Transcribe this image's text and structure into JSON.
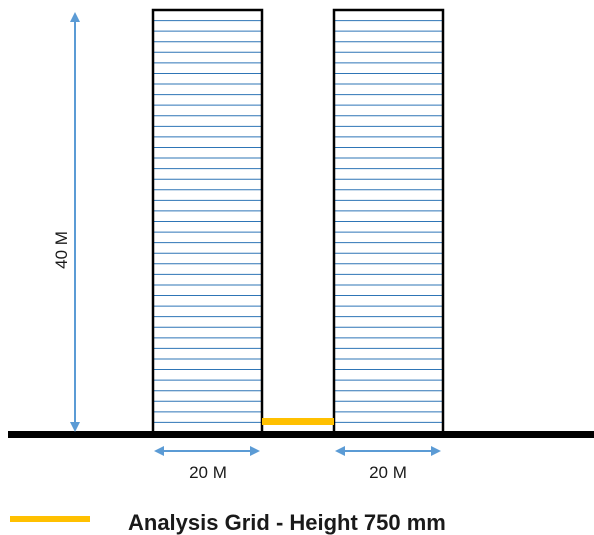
{
  "dimensions": {
    "height_label": "40 M",
    "left_width_label": "20 M",
    "right_width_label": "20 M"
  },
  "legend": {
    "label": "Analysis Grid - Height 750 mm"
  },
  "colors": {
    "building_line": "#2e75b6",
    "arrow": "#5b9bd5",
    "ground": "#000000",
    "analysis_grid": "#ffc000"
  },
  "buildings": [
    {
      "name": "building-left",
      "floors": 40
    },
    {
      "name": "building-right",
      "floors": 40
    }
  ]
}
